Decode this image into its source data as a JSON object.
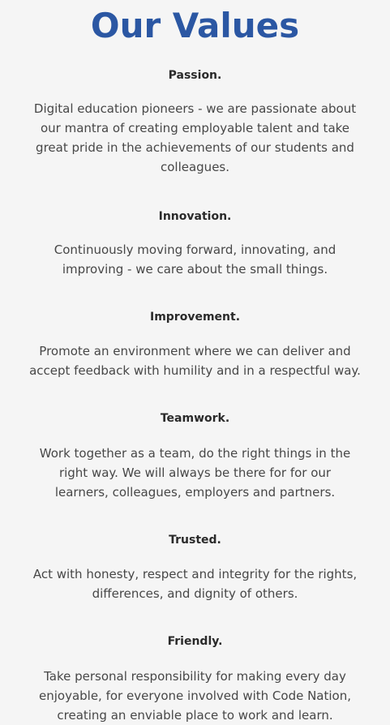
{
  "page": {
    "title": "Our Values"
  },
  "values": [
    {
      "heading": "Passion.",
      "text": "Digital education pioneers - we are passionate about our mantra of creating employable talent and take great pride in the achievements of our students and colleagues."
    },
    {
      "heading": "Innovation.",
      "text": "Continuously moving forward, innovating, and improving - we care about the small things."
    },
    {
      "heading": "Improvement.",
      "text": "Promote an environment where we can deliver and accept feedback with humility and in a respectful way."
    },
    {
      "heading": "Teamwork.",
      "text": "Work together as a team, do the right things in the right way. We will always be there for for our learners, colleagues, employers and partners."
    },
    {
      "heading": "Trusted.",
      "text": "Act with honesty, respect and integrity for the rights, differences, and dignity of others."
    },
    {
      "heading": "Friendly.",
      "text": "Take personal responsibility for making every day enjoyable, for everyone involved with Code Nation, creating an enviable place to work and learn."
    }
  ],
  "colors": {
    "title": "#2b57a3",
    "heading": "#2a2a2a",
    "text": "#474747",
    "background": "#f5f5f5"
  }
}
